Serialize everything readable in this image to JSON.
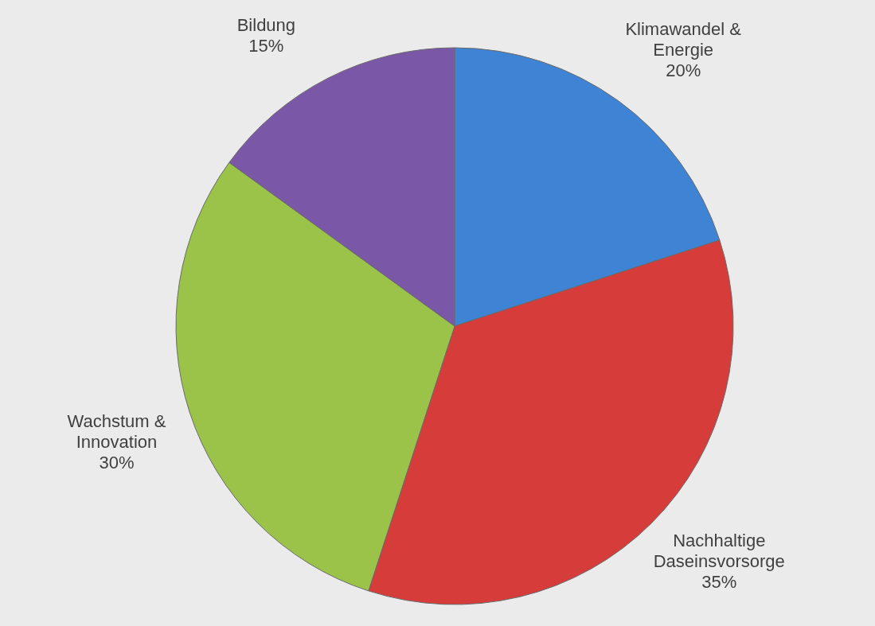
{
  "chart_data": {
    "type": "pie",
    "categories": [
      "Klimawandel & Energie",
      "Nachhaltige Daseinsvorsorge",
      "Wachstum & Innovation",
      "Bildung"
    ],
    "values": [
      20,
      35,
      30,
      15
    ],
    "colors": [
      "#3f83d4",
      "#d63c3a",
      "#9bc34a",
      "#7b57a8"
    ],
    "value_labels": [
      "20%",
      "35%",
      "30%",
      "15%"
    ]
  }
}
